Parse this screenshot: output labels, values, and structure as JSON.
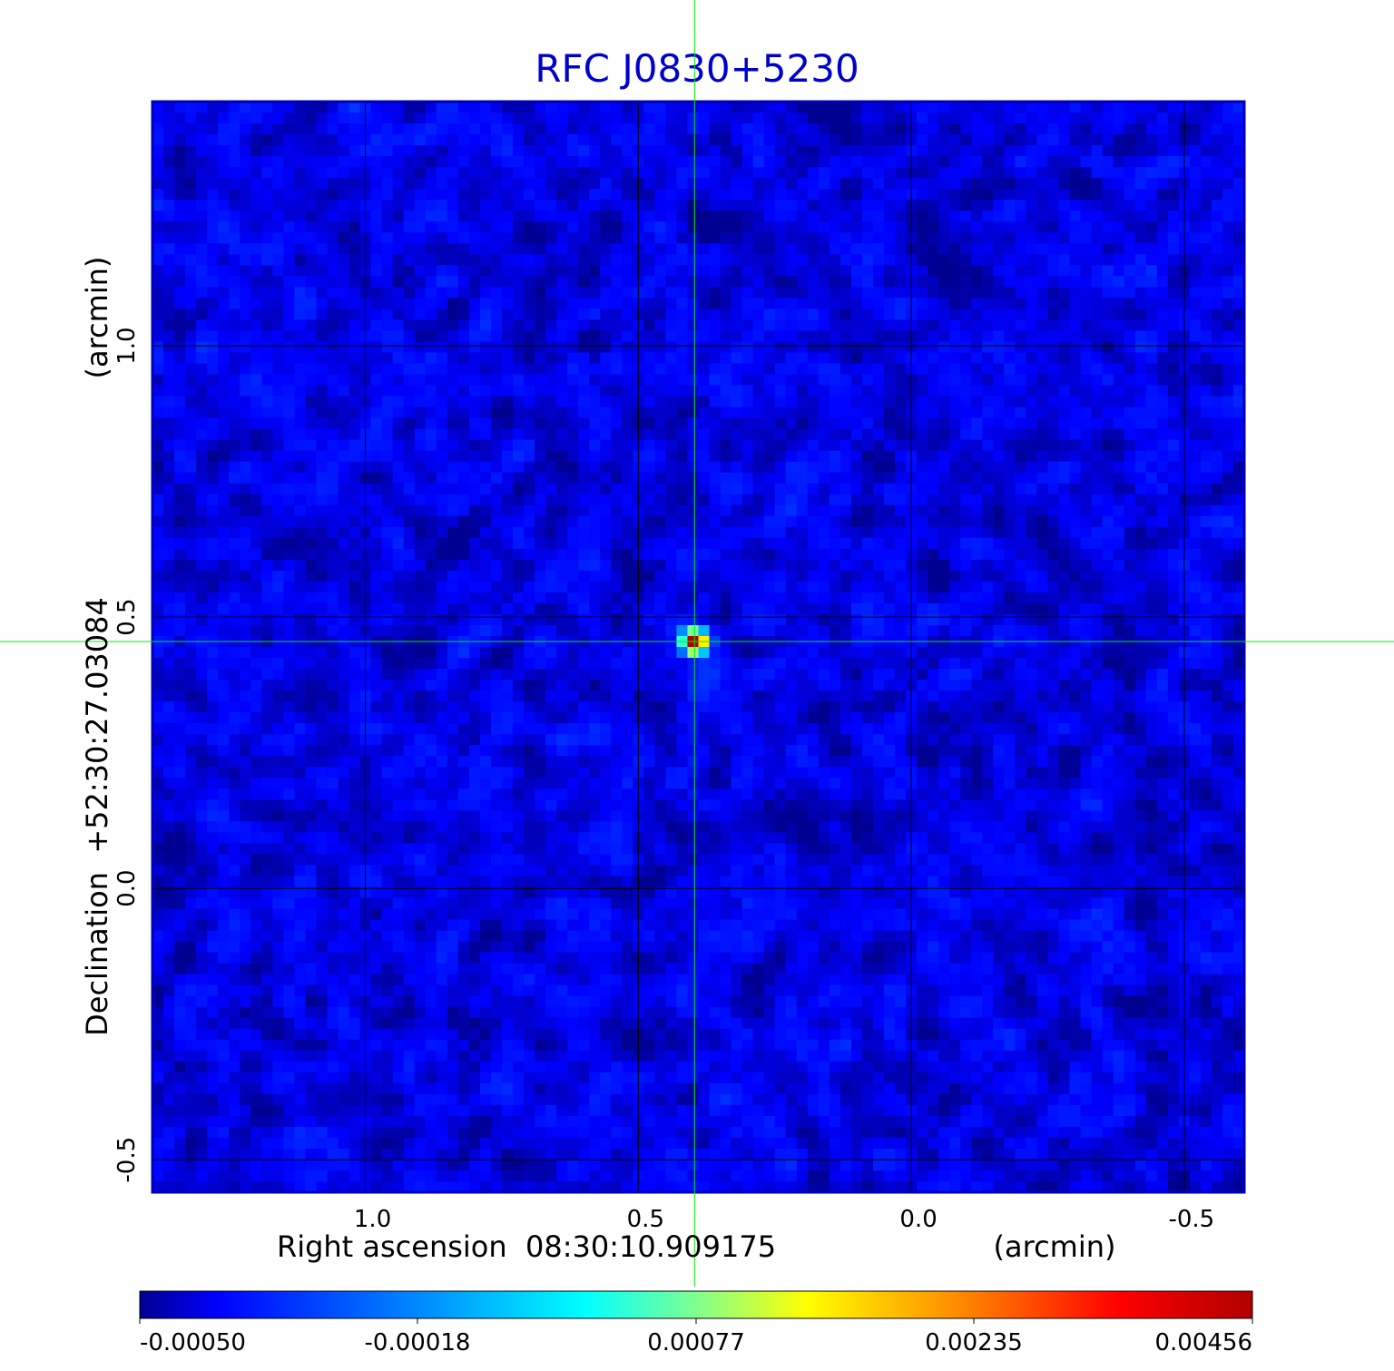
{
  "chart_data": {
    "type": "heatmap",
    "title": "RFC J0830+5230",
    "xlabel": "Right ascension  08:30:10.909175",
    "xunit": "(arcmin)",
    "ylabel": "Declination  +52:30:27.03084",
    "yunit": "(arcmin)",
    "x_ticks": [
      "1.0",
      "0.5",
      "0.0",
      "-0.5"
    ],
    "x_tick_values": [
      1.0,
      0.5,
      0.0,
      -0.5
    ],
    "y_ticks": [
      "1.0",
      "0.5",
      "0.0",
      "-0.5"
    ],
    "y_tick_values": [
      1.0,
      0.5,
      0.0,
      -0.5
    ],
    "xlim": [
      1.39,
      -0.61
    ],
    "ylim": [
      -0.56,
      1.45
    ],
    "grid": true,
    "crosshair": {
      "x": 0.397,
      "y": 0.455
    },
    "source": {
      "x": 0.397,
      "y": 0.455,
      "peak": 0.00456
    },
    "colorbar": {
      "min": -0.0005,
      "max": 0.00456,
      "ticks": [
        "-0.00050",
        "-0.00018",
        "0.00077",
        "0.00235",
        "0.00456"
      ]
    },
    "colors": {
      "title": "#0000cc",
      "frame": "#0000bb",
      "crosshair": "#00ee00",
      "grid": "#000000"
    }
  }
}
